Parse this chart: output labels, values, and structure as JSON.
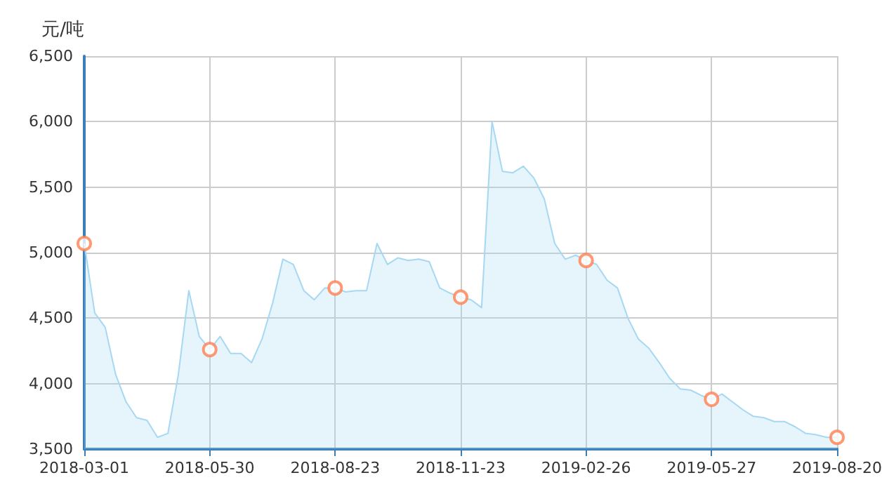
{
  "chart_data": {
    "type": "area",
    "ylabel": "元/吨",
    "categories": [
      "2018-03-01",
      null,
      null,
      null,
      null,
      null,
      null,
      null,
      null,
      null,
      null,
      null,
      "2018-05-30",
      null,
      null,
      null,
      null,
      null,
      null,
      null,
      null,
      null,
      null,
      null,
      "2018-08-23",
      null,
      null,
      null,
      null,
      null,
      null,
      null,
      null,
      null,
      null,
      null,
      "2018-11-23",
      null,
      null,
      null,
      null,
      null,
      null,
      null,
      null,
      null,
      null,
      null,
      "2019-02-26",
      null,
      null,
      null,
      null,
      null,
      null,
      null,
      null,
      null,
      null,
      null,
      "2019-05-27",
      null,
      null,
      null,
      null,
      null,
      null,
      null,
      null,
      null,
      null,
      null,
      "2019-08-20"
    ],
    "series": [
      {
        "color": "#a6d8f2",
        "values": [
          5070,
          4540,
          4430,
          4070,
          3860,
          3740,
          3720,
          3590,
          3620,
          4070,
          4710,
          4360,
          4260,
          4360,
          4230,
          4230,
          4160,
          4340,
          4610,
          4950,
          4910,
          4710,
          4640,
          4730,
          4730,
          4700,
          4710,
          4710,
          5070,
          4910,
          4960,
          4940,
          4950,
          4930,
          4730,
          4690,
          4660,
          4640,
          4580,
          6000,
          5620,
          5610,
          5660,
          5570,
          5410,
          5070,
          4950,
          4980,
          4940,
          4910,
          4790,
          4730,
          4500,
          4340,
          4270,
          4160,
          4040,
          3960,
          3950,
          3910,
          3880,
          3920,
          3860,
          3800,
          3750,
          3740,
          3710,
          3710,
          3670,
          3620,
          3610,
          3590,
          3590
        ]
      },
      {
        "type": "scatter",
        "marker": "circle",
        "color": "#ff7f50",
        "values": [
          5070,
          null,
          null,
          null,
          null,
          null,
          null,
          null,
          null,
          null,
          null,
          null,
          4260,
          null,
          null,
          null,
          null,
          null,
          null,
          null,
          null,
          null,
          null,
          null,
          4730,
          null,
          null,
          null,
          null,
          null,
          null,
          null,
          null,
          null,
          null,
          null,
          4660,
          null,
          null,
          null,
          null,
          null,
          null,
          null,
          null,
          null,
          null,
          null,
          4940,
          null,
          null,
          null,
          null,
          null,
          null,
          null,
          null,
          null,
          null,
          null,
          3880,
          null,
          null,
          null,
          null,
          null,
          null,
          null,
          null,
          null,
          null,
          null,
          3590
        ]
      }
    ],
    "ylim": [
      3500,
      6500
    ],
    "yticks": [
      {
        "value": 3500,
        "label": "3,500"
      },
      {
        "value": 4000,
        "label": "4,000"
      },
      {
        "value": 4500,
        "label": "4,500"
      },
      {
        "value": 5000,
        "label": "5,000"
      },
      {
        "value": 5500,
        "label": "5,500"
      },
      {
        "value": 6000,
        "label": "6,000"
      },
      {
        "value": 6500,
        "label": "6,500"
      }
    ],
    "grid": true
  }
}
